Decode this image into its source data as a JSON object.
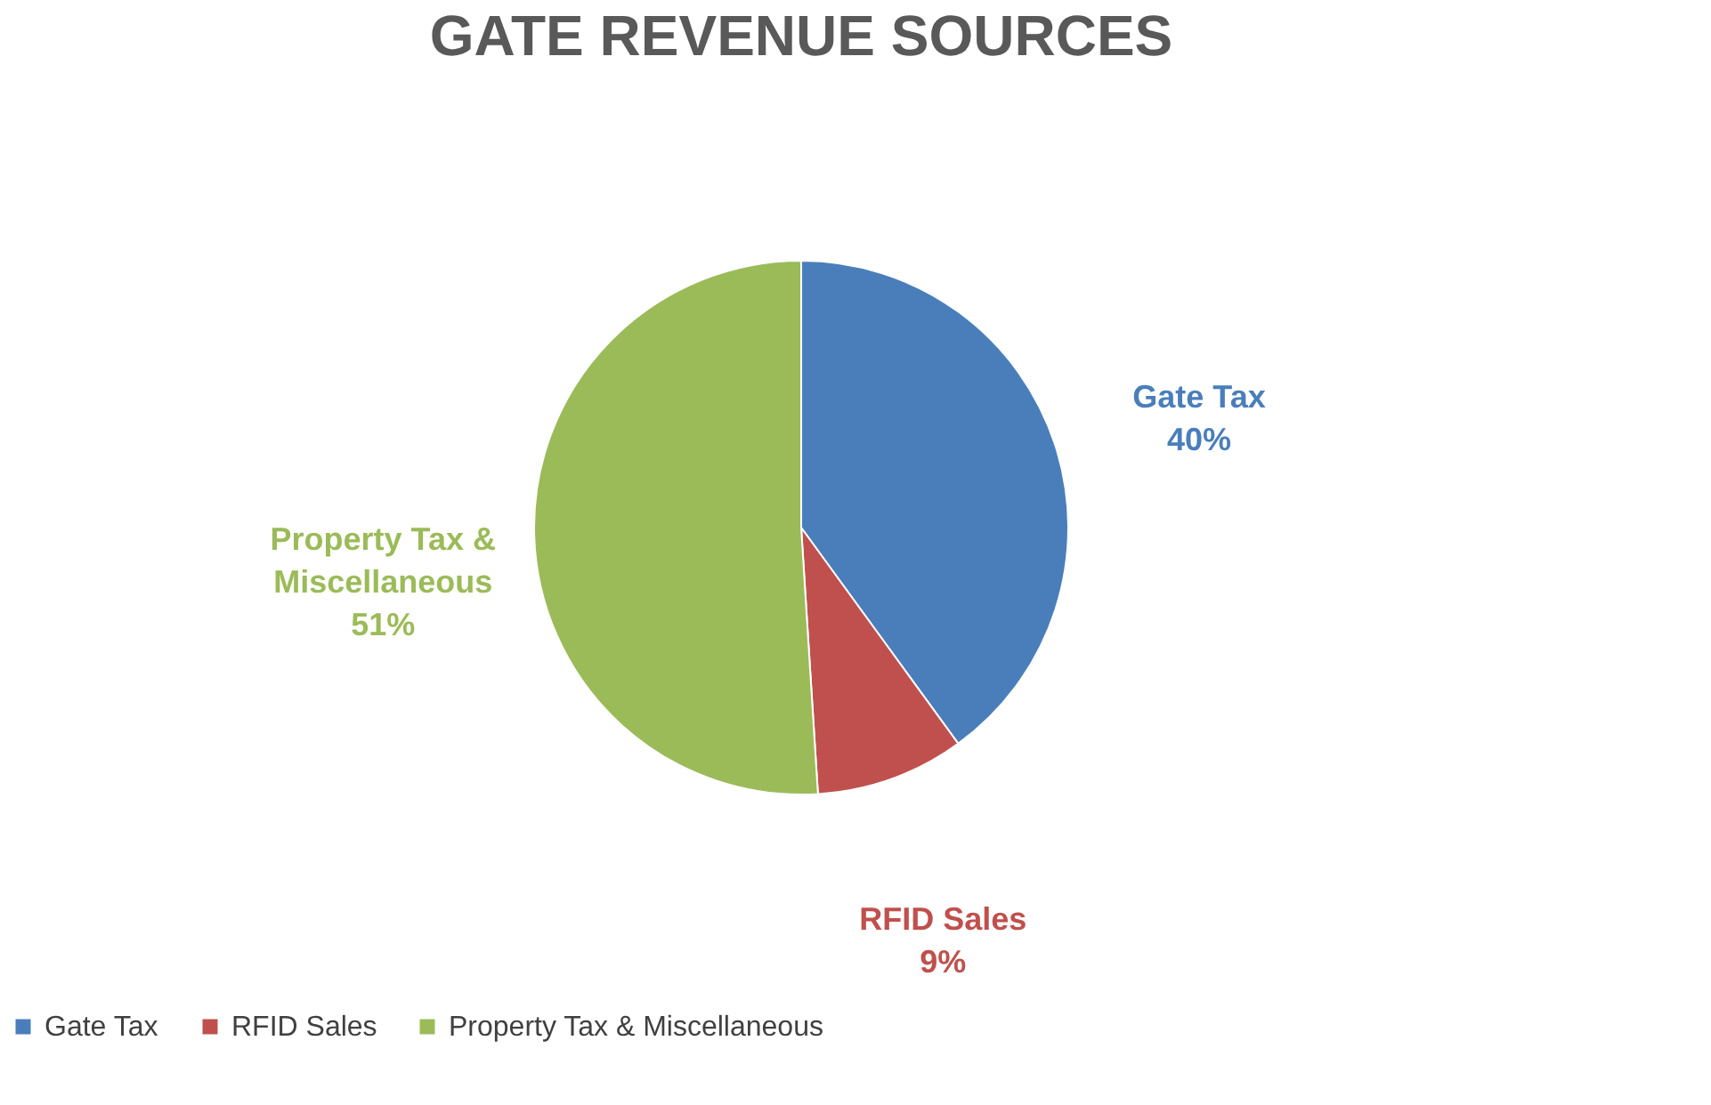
{
  "chart_data": {
    "type": "pie",
    "title": "GATE REVENUE SOURCES",
    "categories": [
      "Gate Tax",
      "RFID Sales",
      "Property Tax & Miscellaneous"
    ],
    "values": [
      40,
      9,
      51
    ],
    "colors": [
      "#4a7ebb",
      "#c0504d",
      "#9bbb59"
    ],
    "value_labels": [
      "40%",
      "9%",
      "51%"
    ],
    "legend": "bottom"
  }
}
